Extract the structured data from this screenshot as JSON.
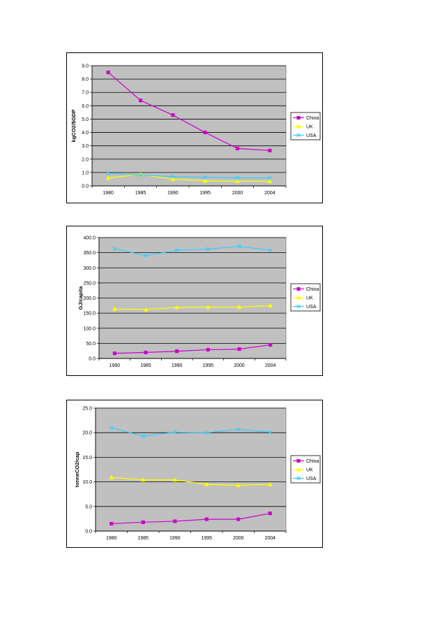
{
  "chart_data": [
    {
      "type": "line",
      "title": "",
      "xlabel": "",
      "ylabel": "kgCO2/$GDP",
      "categories": [
        "1980",
        "1985",
        "1990",
        "1995",
        "2000",
        "2004"
      ],
      "ylim": [
        0,
        9
      ],
      "ytick_step": 1,
      "ytick_decimals": 1,
      "grid": true,
      "legend_position": "right",
      "series": [
        {
          "name": "China",
          "values": [
            8.5,
            6.4,
            5.3,
            4.0,
            2.8,
            2.65
          ],
          "color": "#cc00cc",
          "marker": "square"
        },
        {
          "name": "UK",
          "values": [
            0.6,
            0.85,
            0.5,
            0.38,
            0.35,
            0.35
          ],
          "color": "#ffff00",
          "marker": "triangle"
        },
        {
          "name": "USA",
          "values": [
            0.95,
            0.8,
            0.7,
            0.65,
            0.6,
            0.6
          ],
          "color": "#33ccff",
          "marker": "x"
        }
      ]
    },
    {
      "type": "line",
      "title": "",
      "xlabel": "",
      "ylabel": "GJ/capita",
      "categories": [
        "1980",
        "1985",
        "1990",
        "1995",
        "2000",
        "2004"
      ],
      "ylim": [
        0,
        400
      ],
      "ytick_step": 50,
      "ytick_decimals": 1,
      "grid": true,
      "legend_position": "right",
      "series": [
        {
          "name": "China",
          "values": [
            17,
            20,
            24,
            29,
            31,
            45
          ],
          "color": "#cc00cc",
          "marker": "square"
        },
        {
          "name": "UK",
          "values": [
            164,
            162,
            169,
            170,
            170,
            175
          ],
          "color": "#ffff00",
          "marker": "triangle"
        },
        {
          "name": "USA",
          "values": [
            363,
            340,
            358,
            362,
            371,
            358
          ],
          "color": "#33ccff",
          "marker": "x"
        }
      ]
    },
    {
      "type": "line",
      "title": "",
      "xlabel": "",
      "ylabel": "tonneCO2/cap",
      "categories": [
        "1980",
        "1985",
        "1990",
        "1995",
        "2000",
        "2004"
      ],
      "ylim": [
        0,
        25
      ],
      "ytick_step": 5,
      "ytick_decimals": 1,
      "grid": true,
      "legend_position": "right",
      "series": [
        {
          "name": "China",
          "values": [
            1.5,
            1.8,
            2.0,
            2.4,
            2.4,
            3.6
          ],
          "color": "#cc00cc",
          "marker": "square"
        },
        {
          "name": "UK",
          "values": [
            10.9,
            10.4,
            10.4,
            9.5,
            9.3,
            9.5
          ],
          "color": "#ffff00",
          "marker": "triangle"
        },
        {
          "name": "USA",
          "values": [
            21.0,
            19.3,
            20.1,
            20.0,
            20.7,
            20.1
          ],
          "color": "#33ccff",
          "marker": "x"
        }
      ]
    }
  ]
}
